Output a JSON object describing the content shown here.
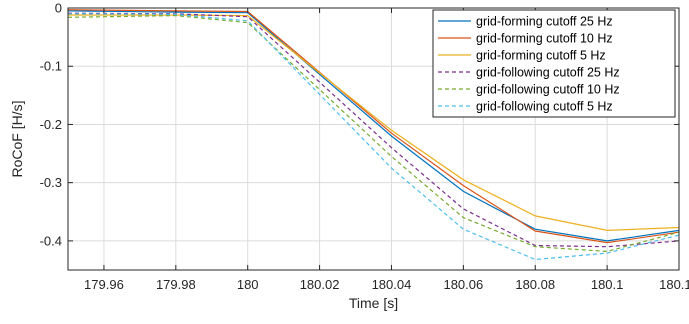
{
  "chart_data": {
    "type": "line",
    "title": "",
    "xlabel": "Time [s]",
    "ylabel": "RoCoF [H/s]",
    "xlim": [
      179.95,
      180.12
    ],
    "ylim": [
      -0.45,
      0
    ],
    "xticks": [
      179.96,
      179.98,
      180,
      180.02,
      180.04,
      180.06,
      180.08,
      180.1,
      180.12
    ],
    "xtick_labels": [
      "179.96",
      "179.98",
      "180",
      "180.02",
      "180.04",
      "180.06",
      "180.08",
      "180.1",
      "180.12"
    ],
    "yticks": [
      0,
      -0.1,
      -0.2,
      -0.3,
      -0.4
    ],
    "ytick_labels": [
      "0",
      "-0.1",
      "-0.2",
      "-0.3",
      "-0.4"
    ],
    "grid": true,
    "legend_position": "top-right",
    "x": [
      179.95,
      179.98,
      180.0,
      180.04,
      180.06,
      180.08,
      180.1,
      180.12
    ],
    "series": [
      {
        "name": "grid-forming cutoff 25 Hz",
        "color": "#0072bd",
        "dash": "solid",
        "values": [
          -0.005,
          -0.007,
          -0.008,
          -0.22,
          -0.315,
          -0.38,
          -0.4,
          -0.382
        ]
      },
      {
        "name": "grid-forming cutoff 10 Hz",
        "color": "#d95319",
        "dash": "solid",
        "values": [
          -0.003,
          -0.005,
          -0.006,
          -0.215,
          -0.305,
          -0.383,
          -0.403,
          -0.385
        ]
      },
      {
        "name": "grid-forming cutoff 5 Hz",
        "color": "#edb120",
        "dash": "solid",
        "values": [
          -0.012,
          -0.012,
          -0.013,
          -0.21,
          -0.295,
          -0.357,
          -0.382,
          -0.377
        ]
      },
      {
        "name": "grid-following cutoff 25 Hz",
        "color": "#7e2f8e",
        "dash": "dashed",
        "values": [
          -0.009,
          -0.01,
          -0.015,
          -0.24,
          -0.345,
          -0.408,
          -0.41,
          -0.4
        ]
      },
      {
        "name": "grid-following cutoff 10 Hz",
        "color": "#77ac30",
        "dash": "dashed",
        "values": [
          -0.016,
          -0.013,
          -0.025,
          -0.255,
          -0.36,
          -0.41,
          -0.418,
          -0.385
        ]
      },
      {
        "name": "grid-following cutoff 5 Hz",
        "color": "#4dbeee",
        "dash": "dashed",
        "values": [
          -0.01,
          -0.011,
          -0.022,
          -0.275,
          -0.38,
          -0.432,
          -0.421,
          -0.39
        ]
      }
    ]
  }
}
